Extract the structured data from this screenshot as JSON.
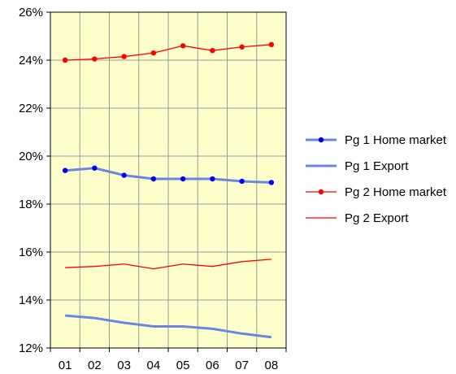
{
  "chart_data": {
    "type": "line",
    "title": "",
    "xlabel": "",
    "ylabel": "",
    "categories": [
      "01",
      "02",
      "03",
      "04",
      "05",
      "06",
      "07",
      "08"
    ],
    "ylim": [
      12,
      26
    ],
    "y_tick_step": 2,
    "y_tick_format": "percent",
    "grid": true,
    "legend_position": "right",
    "plot_background": "#FFFFCC",
    "series": [
      {
        "name": "Pg 1 Home market",
        "color": "#0000FF",
        "line_color": "#6B86E0",
        "line": "thick",
        "marker": "circle",
        "values": [
          19.4,
          19.5,
          19.2,
          19.05,
          19.05,
          19.05,
          18.95,
          18.9
        ]
      },
      {
        "name": "Pg 1 Export",
        "color": "#6B86E0",
        "line": "thick",
        "marker": "none",
        "values": [
          13.35,
          13.25,
          13.05,
          12.9,
          12.9,
          12.8,
          12.6,
          12.45
        ]
      },
      {
        "name": "Pg 2 Home market",
        "color": "#FF0000",
        "line": "thin",
        "marker": "circle",
        "values": [
          24.0,
          24.05,
          24.15,
          24.3,
          24.6,
          24.4,
          24.55,
          24.65
        ]
      },
      {
        "name": "Pg 2 Export",
        "color": "#FF0000",
        "line": "thin",
        "marker": "none",
        "values": [
          15.35,
          15.4,
          15.5,
          15.3,
          15.5,
          15.4,
          15.6,
          15.7
        ]
      }
    ]
  }
}
